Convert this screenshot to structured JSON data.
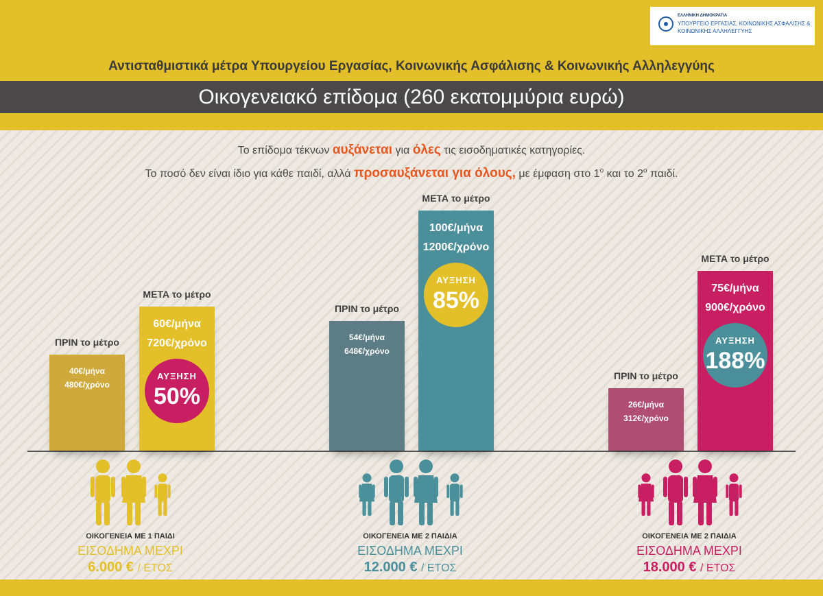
{
  "header": {
    "logo_lines": [
      "ΕΛΛΗΝΙΚΗ ΔΗΜΟΚΡΑΤΙΑ",
      "ΥΠΟΥΡΓΕΙΟ ΕΡΓΑΣΙΑΣ, ΚΟΙΝΩΝΙΚΗΣ ΑΣΦΑΛΙΣΗΣ &",
      "ΚΟΙΝΩΝΙΚΗΣ ΑΛΛΗΛΕΓΓΥΗΣ"
    ],
    "subtitle": "Αντισταθμιστικά μέτρα Υπουργείου Εργασίας, Κοινωνικής Ασφάλισης & Κοινωνικής Αλληλεγγύης",
    "title": "Οικογενειακό επίδομα (260 εκατομμύρια ευρώ)"
  },
  "intro": {
    "line1": [
      "Το επίδομα τέκνων ",
      "αυξάνεται",
      " για ",
      "όλες",
      " τις εισοδηματικές κατηγορίες."
    ],
    "line2": [
      "Το ποσό δεν είναι ίδιο για κάθε παιδί, αλλά ",
      "προσαυξάνεται για όλους,",
      " με έμφαση στο 1",
      "ο",
      " και το 2",
      "ο",
      " παιδί."
    ]
  },
  "chart_data": {
    "type": "bar",
    "categories": [
      "ΟΙΚΟΓΕΝΕΙΑ ΜΕ 1 ΠΑΙΔΙ",
      "ΟΙΚΟΓΕΝΕΙΑ ΜΕ 2 ΠΑΙΔΙΑ",
      "ΟΙΚΟΓΕΝΕΙΑ ΜΕ 2 ΠΑΙΔΙΑ"
    ],
    "series": [
      {
        "name": "ΠΡΙΝ το μέτρο",
        "values": [
          40,
          54,
          26
        ]
      },
      {
        "name": "ΜΕΤΑ το μέτρο",
        "values": [
          60,
          100,
          75
        ]
      }
    ],
    "yearly": {
      "before": [
        480,
        648,
        312
      ],
      "after": [
        720,
        1200,
        900
      ]
    },
    "increase_pct": [
      50,
      85,
      188
    ]
  },
  "groups": [
    {
      "before_label": "ΠΡΙΝ το μέτρο",
      "after_label": "ΜΕΤΑ το μέτρο",
      "before_month": "40€/μήνα",
      "before_year": "480€/χρόνο",
      "after_month": "60€/μήνα",
      "after_year": "720€/χρόνο",
      "increase_label": "ΑΥΞΗΣΗ",
      "increase_value": "50%",
      "family": "ΟΙΚΟΓΕΝΕΙΑ ΜΕ 1 ΠΑΙΔΙ",
      "income_label": "ΕΙΣΟΔΗΜΑ ΜΕΧΡΙ",
      "income_amount": "6.000 €",
      "income_unit": "/ ΕΤΟΣ",
      "color_before": "#cfa93c",
      "color_after": "#e3bf2a",
      "color_circle": "#c81f63",
      "color_family": "#e3bf2a"
    },
    {
      "before_label": "ΠΡΙΝ το μέτρο",
      "after_label": "ΜΕΤΑ το μέτρο",
      "before_month": "54€/μήνα",
      "before_year": "648€/χρόνο",
      "after_month": "100€/μήνα",
      "after_year": "1200€/χρόνο",
      "increase_label": "ΑΥΞΗΣΗ",
      "increase_value": "85%",
      "family": "ΟΙΚΟΓΕΝΕΙΑ ΜΕ 2 ΠΑΙΔΙΑ",
      "income_label": "ΕΙΣΟΔΗΜΑ ΜΕΧΡΙ",
      "income_amount": "12.000 €",
      "income_unit": "/ ΕΤΟΣ",
      "color_before": "#5c7d85",
      "color_after": "#4b8f9b",
      "color_circle": "#e3bf2a",
      "color_family": "#4b8f9b"
    },
    {
      "before_label": "ΠΡΙΝ το μέτρο",
      "after_label": "ΜΕΤΑ το μέτρο",
      "before_month": "26€/μήνα",
      "before_year": "312€/χρόνο",
      "after_month": "75€/μήνα",
      "after_year": "900€/χρόνο",
      "increase_label": "ΑΥΞΗΣΗ",
      "increase_value": "188%",
      "family": "ΟΙΚΟΓΕΝΕΙΑ ΜΕ 2 ΠΑΙΔΙΑ",
      "income_label": "ΕΙΣΟΔΗΜΑ ΜΕΧΡΙ",
      "income_amount": "18.000 €",
      "income_unit": "/ ΕΤΟΣ",
      "color_before": "#b04e72",
      "color_after": "#c81f63",
      "color_circle": "#4b8f9b",
      "color_family": "#c81f63"
    }
  ]
}
